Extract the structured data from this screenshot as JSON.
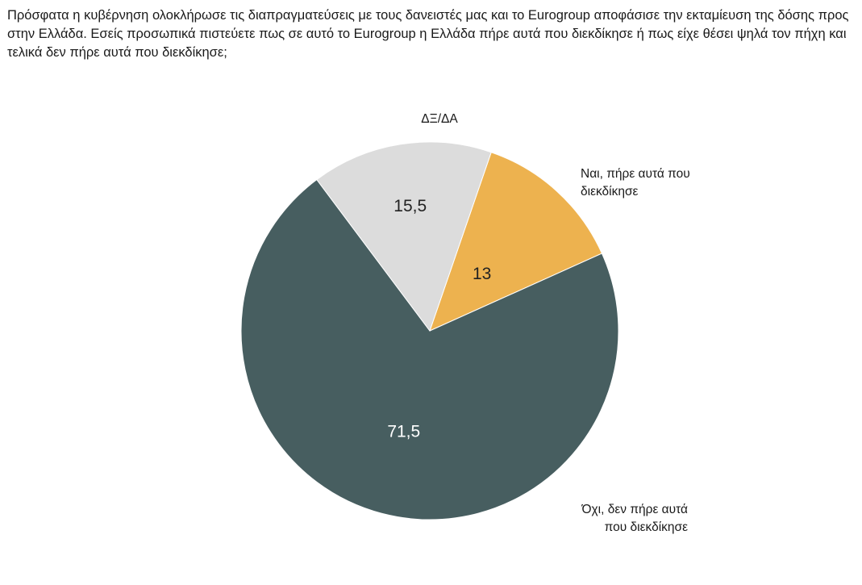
{
  "question": "Πρόσφατα η κυβέρνηση ολοκλήρωσε τις διαπραγματεύσεις με τους δανειστές μας και το Eurogroup αποφάσισε την εκταμίευση της δόσης προς στην Ελλάδα. Εσείς προσωπικά πιστεύετε πως σε αυτό το Eurogroup η Ελλάδα πήρε αυτά που διεκδίκησε ή πως είχε θέσει ψηλά τον πήχη και τελικά δεν πήρε αυτά που διεκδίκησε;",
  "chart_data": {
    "type": "pie",
    "title": "",
    "start_angle_deg": 19,
    "slices": [
      {
        "label_lines": [
          "Ναι, πήρε αυτά που",
          "διεκδίκησε"
        ],
        "value": 13,
        "value_text": "13",
        "color": "#EDB24F",
        "value_color": "#222222"
      },
      {
        "label_lines": [
          "Όχι, δεν πήρε αυτά",
          "που διεκδίκησε"
        ],
        "value": 71.5,
        "value_text": "71,5",
        "color": "#475E60",
        "value_color": "#ffffff"
      },
      {
        "label_lines": [
          "ΔΞ/ΔΑ"
        ],
        "value": 15.5,
        "value_text": "15,5",
        "color": "#DCDCDC",
        "value_color": "#222222"
      }
    ]
  }
}
